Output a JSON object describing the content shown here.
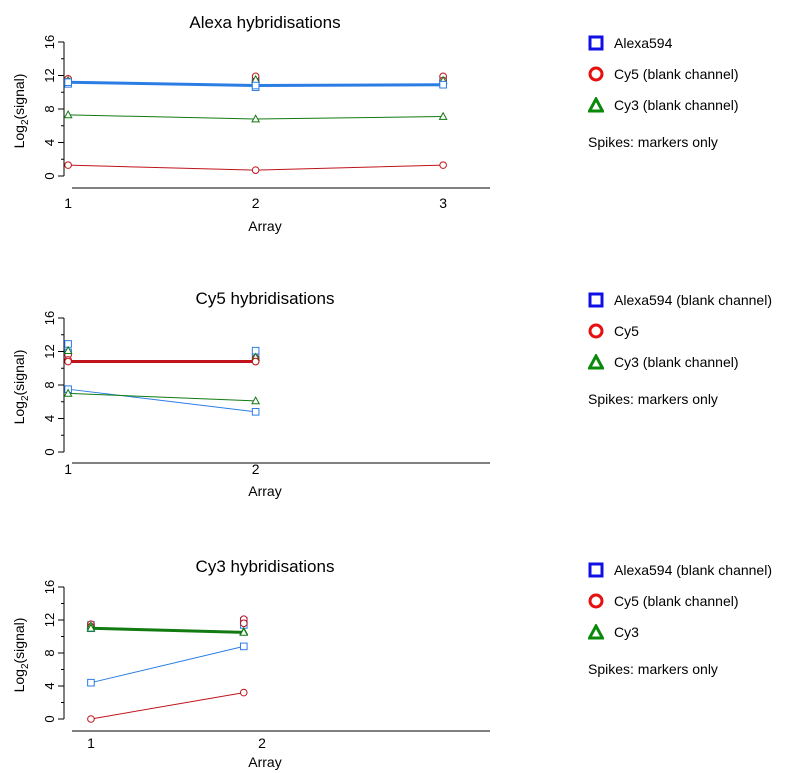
{
  "colors": {
    "alexa": "#2b7de6",
    "cy5": "#c0131b",
    "cy3": "#117a11",
    "legend_square": "#1010e6",
    "legend_circle": "#e61010",
    "legend_triangle": "#0a8a0a"
  },
  "chart_data": [
    {
      "type": "line",
      "title": "Alexa hybridisations",
      "xlabel": "Array",
      "ylabel": "Log2(signal)",
      "ylabel_main": "Log",
      "ylabel_sub": "2",
      "ylabel_rest": "(signal)",
      "x_ticks": [
        "1",
        "2",
        "3"
      ],
      "y_ticks": [
        "0",
        "4",
        "8",
        "12",
        "16"
      ],
      "xlim": [
        0.85,
        3.25
      ],
      "ylim": [
        0,
        16
      ],
      "x": [
        1,
        2,
        3
      ],
      "series": [
        {
          "name": "Alexa594",
          "color_key": "alexa",
          "marker": "square",
          "width": 3,
          "values": [
            11.2,
            10.8,
            10.9
          ],
          "spikes": [
            [
              11.0,
              11.3
            ],
            [
              10.6,
              11.0,
              11.4
            ],
            [
              11.0,
              11.5
            ]
          ]
        },
        {
          "name": "Cy5 (blank channel)",
          "color_key": "cy5",
          "marker": "circle",
          "width": 1,
          "values": [
            1.3,
            0.7,
            1.3
          ],
          "spikes": [
            [
              11.6,
              11.3
            ],
            [
              11.9,
              11.3
            ],
            [
              11.9,
              11.4
            ]
          ]
        },
        {
          "name": "Cy3 (blank channel)",
          "color_key": "cy3",
          "marker": "triangle",
          "width": 1,
          "values": [
            7.3,
            6.8,
            7.1
          ],
          "spikes": [
            [
              11.4
            ],
            [
              11.1,
              11.5
            ],
            [
              11.4
            ]
          ]
        }
      ],
      "legend": [
        {
          "label": "Alexa594",
          "marker": "square"
        },
        {
          "label": "Cy5 (blank channel)",
          "marker": "circle"
        },
        {
          "label": "Cy3 (blank channel)",
          "marker": "triangle"
        }
      ],
      "note": "Spikes: markers only"
    },
    {
      "type": "line",
      "title": "Cy5 hybridisations",
      "xlabel": "Array",
      "ylabel": "Log2(signal)",
      "ylabel_main": "Log",
      "ylabel_sub": "2",
      "ylabel_rest": "(signal)",
      "x_ticks": [
        "1",
        "2"
      ],
      "y_ticks": [
        "0",
        "4",
        "8",
        "12",
        "16"
      ],
      "xlim": [
        0.85,
        3.25
      ],
      "ylim": [
        0,
        16
      ],
      "x": [
        1,
        2
      ],
      "series": [
        {
          "name": "Alexa594 (blank channel)",
          "color_key": "alexa",
          "marker": "square",
          "width": 1,
          "values": [
            7.5,
            4.8
          ],
          "spikes": [
            [
              12.9,
              11.9
            ],
            [
              12.1,
              11.3
            ]
          ]
        },
        {
          "name": "Cy5",
          "color_key": "cy5",
          "marker": "circle",
          "width": 3,
          "values": [
            10.8,
            10.8
          ],
          "spikes": [
            [
              11.6,
              11.0
            ],
            [
              11.2,
              10.8
            ]
          ]
        },
        {
          "name": "Cy3 (blank channel)",
          "color_key": "cy3",
          "marker": "triangle",
          "width": 1,
          "values": [
            7.0,
            6.1
          ],
          "spikes": [
            [
              12.1
            ],
            [
              11.3
            ]
          ]
        }
      ],
      "legend": [
        {
          "label": "Alexa594 (blank channel)",
          "marker": "square"
        },
        {
          "label": "Cy5",
          "marker": "circle"
        },
        {
          "label": "Cy3 (blank channel)",
          "marker": "triangle"
        }
      ],
      "note": "Spikes: markers only"
    },
    {
      "type": "line",
      "title": "Cy3 hybridisations",
      "xlabel": "Array",
      "ylabel": "Log2(signal)",
      "ylabel_main": "Log",
      "ylabel_sub": "2",
      "ylabel_rest": "(signal)",
      "x_ticks": [
        "1",
        "2"
      ],
      "y_ticks": [
        "0",
        "4",
        "8",
        "12",
        "16"
      ],
      "xlim": [
        0.8,
        3.45
      ],
      "ylim": [
        0,
        16
      ],
      "x": [
        1.1,
        2.0
      ],
      "series": [
        {
          "name": "Alexa594 (blank channel)",
          "color_key": "alexa",
          "marker": "square",
          "width": 1,
          "values": [
            4.4,
            8.8
          ],
          "spikes": [
            [
              11.4,
              11.0
            ],
            [
              11.4,
              11.9
            ]
          ]
        },
        {
          "name": "Cy5 (blank channel)",
          "color_key": "cy5",
          "marker": "circle",
          "width": 1,
          "values": [
            0.0,
            3.2
          ],
          "spikes": [
            [
              11.5,
              11.2
            ],
            [
              12.1,
              11.6
            ]
          ]
        },
        {
          "name": "Cy3",
          "color_key": "cy3",
          "marker": "triangle",
          "width": 3,
          "values": [
            11.0,
            10.5
          ],
          "spikes": [
            [
              11.3
            ],
            [
              10.6
            ]
          ]
        }
      ],
      "legend": [
        {
          "label": "Alexa594 (blank channel)",
          "marker": "square"
        },
        {
          "label": "Cy5 (blank channel)",
          "marker": "circle"
        },
        {
          "label": "Cy3",
          "marker": "triangle"
        }
      ],
      "note": "Spikes: markers only"
    }
  ]
}
